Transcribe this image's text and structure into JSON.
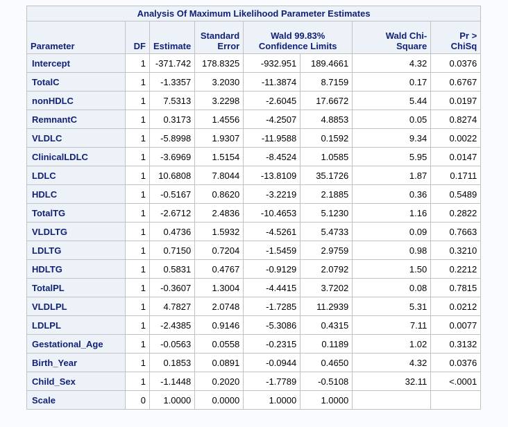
{
  "colors": {
    "page_bg": "#fafbfe",
    "header_bg": "#edf2f9",
    "header_text": "#112277",
    "border": "#c1c1c1",
    "cell_bg": "#ffffff",
    "data_text": "#000000"
  },
  "table": {
    "title": "Analysis Of Maximum Likelihood Parameter Estimates",
    "columns": {
      "parameter": "Parameter",
      "df": "DF",
      "estimate": "Estimate",
      "std_error": "Standard Error",
      "ci": "Wald 99.83% Confidence Limits",
      "chi_square": "Wald Chi-Square",
      "p_value": "Pr > ChiSq"
    },
    "rows": [
      [
        "Intercept",
        "1",
        "-371.742",
        "178.8325",
        "-932.951",
        "189.4661",
        "4.32",
        "0.0376"
      ],
      [
        "TotalC",
        "1",
        "-1.3357",
        "3.2030",
        "-11.3874",
        "8.7159",
        "0.17",
        "0.6767"
      ],
      [
        "nonHDLC",
        "1",
        "7.5313",
        "3.2298",
        "-2.6045",
        "17.6672",
        "5.44",
        "0.0197"
      ],
      [
        "RemnantC",
        "1",
        "0.3173",
        "1.4556",
        "-4.2507",
        "4.8853",
        "0.05",
        "0.8274"
      ],
      [
        "VLDLC",
        "1",
        "-5.8998",
        "1.9307",
        "-11.9588",
        "0.1592",
        "9.34",
        "0.0022"
      ],
      [
        "ClinicalLDLC",
        "1",
        "-3.6969",
        "1.5154",
        "-8.4524",
        "1.0585",
        "5.95",
        "0.0147"
      ],
      [
        "LDLC",
        "1",
        "10.6808",
        "7.8044",
        "-13.8109",
        "35.1726",
        "1.87",
        "0.1711"
      ],
      [
        "HDLC",
        "1",
        "-0.5167",
        "0.8620",
        "-3.2219",
        "2.1885",
        "0.36",
        "0.5489"
      ],
      [
        "TotalTG",
        "1",
        "-2.6712",
        "2.4836",
        "-10.4653",
        "5.1230",
        "1.16",
        "0.2822"
      ],
      [
        "VLDLTG",
        "1",
        "0.4736",
        "1.5932",
        "-4.5261",
        "5.4733",
        "0.09",
        "0.7663"
      ],
      [
        "LDLTG",
        "1",
        "0.7150",
        "0.7204",
        "-1.5459",
        "2.9759",
        "0.98",
        "0.3210"
      ],
      [
        "HDLTG",
        "1",
        "0.5831",
        "0.4767",
        "-0.9129",
        "2.0792",
        "1.50",
        "0.2212"
      ],
      [
        "TotalPL",
        "1",
        "-0.3607",
        "1.3004",
        "-4.4415",
        "3.7202",
        "0.08",
        "0.7815"
      ],
      [
        "VLDLPL",
        "1",
        "4.7827",
        "2.0748",
        "-1.7285",
        "11.2939",
        "5.31",
        "0.0212"
      ],
      [
        "LDLPL",
        "1",
        "-2.4385",
        "0.9146",
        "-5.3086",
        "0.4315",
        "7.11",
        "0.0077"
      ],
      [
        "Gestational_Age",
        "1",
        "-0.0563",
        "0.0558",
        "-0.2315",
        "0.1189",
        "1.02",
        "0.3132"
      ],
      [
        "Birth_Year",
        "1",
        "0.1853",
        "0.0891",
        "-0.0944",
        "0.4650",
        "4.32",
        "0.0376"
      ],
      [
        "Child_Sex",
        "1",
        "-1.1448",
        "0.2020",
        "-1.7789",
        "-0.5108",
        "32.11",
        "<.0001"
      ],
      [
        "Scale",
        "0",
        "1.0000",
        "0.0000",
        "1.0000",
        "1.0000",
        "",
        ""
      ]
    ]
  }
}
